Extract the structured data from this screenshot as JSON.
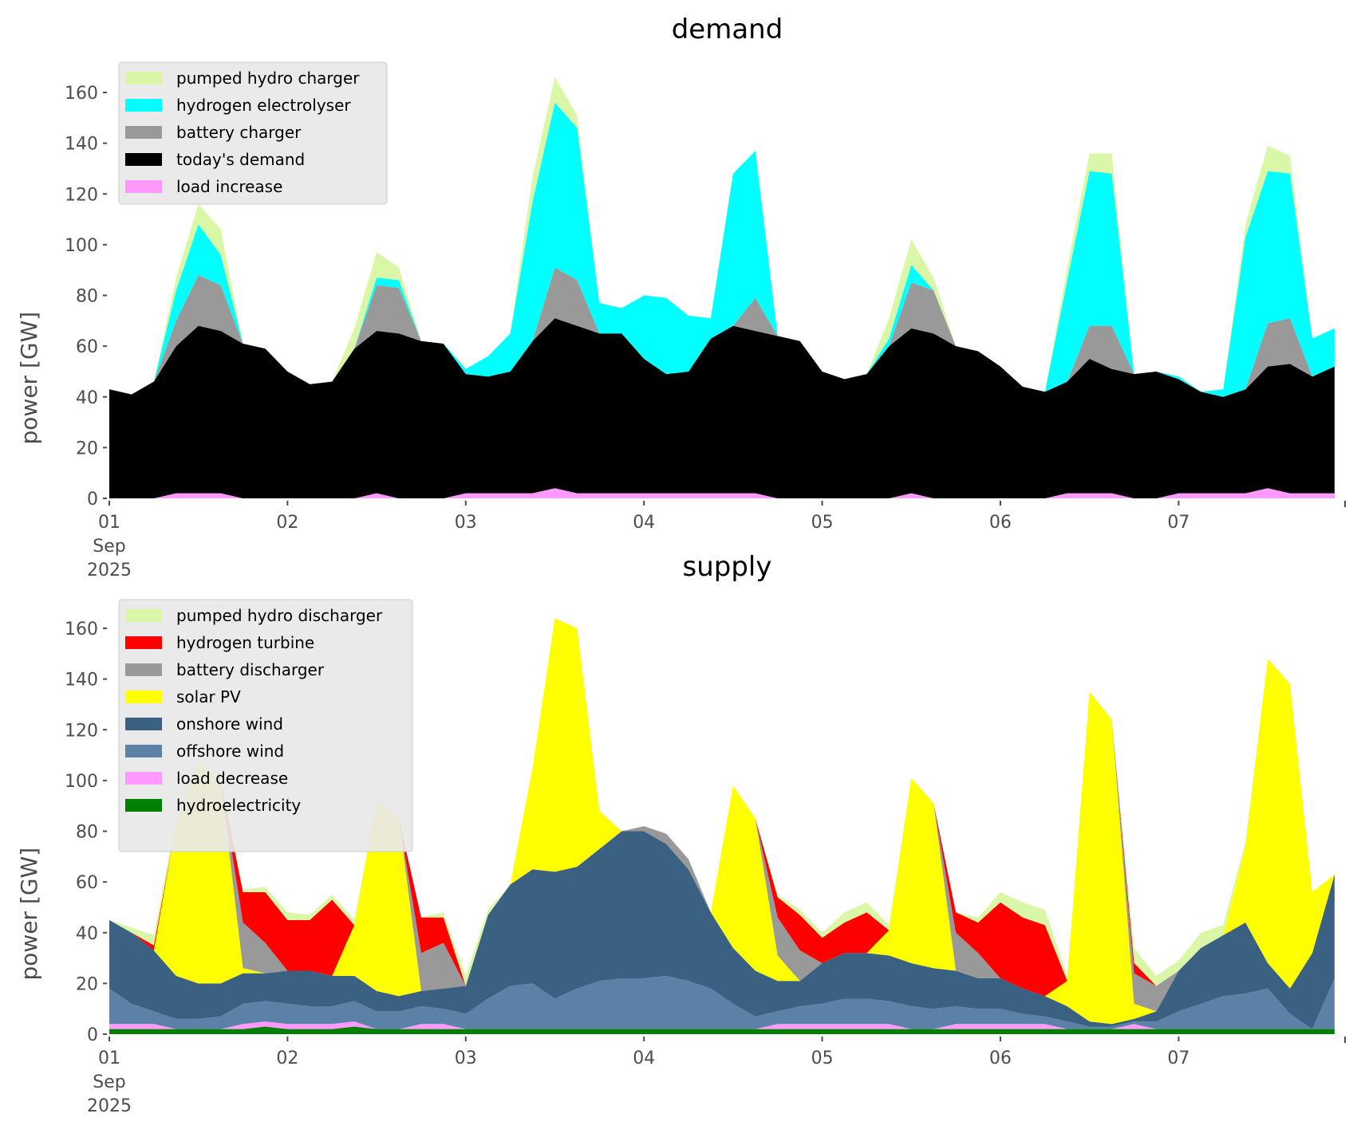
{
  "chart_data": [
    {
      "type": "area",
      "title": "demand",
      "xlabel": "",
      "ylabel": "power [GW]",
      "ylim": [
        0,
        172
      ],
      "yticks": [
        0,
        20,
        40,
        60,
        80,
        100,
        120,
        140,
        160
      ],
      "xticks": [
        "01\nSep\n2025",
        "02",
        "03",
        "04",
        "05",
        "06",
        "07"
      ],
      "xtick_days": [
        0,
        1,
        2,
        3,
        4,
        5,
        6
      ],
      "x_unit": "days since 2025-09-01 00:00",
      "x_step_days": 0.125,
      "x_range_days": [
        0,
        6.93
      ],
      "legend_position": "upper-left",
      "stack_order": "bottom-to-top",
      "series": [
        {
          "name": "load increase",
          "color": "#ff99ff",
          "overlay": true,
          "values": [
            0,
            0,
            0,
            2,
            2,
            2,
            0,
            0,
            0,
            0,
            0,
            0,
            2,
            0,
            0,
            0,
            2,
            2,
            2,
            2,
            4,
            2,
            2,
            2,
            2,
            2,
            2,
            2,
            2,
            2,
            0,
            0,
            0,
            0,
            0,
            0,
            2,
            0,
            0,
            0,
            0,
            0,
            0,
            2,
            2,
            2,
            0,
            0,
            2,
            2,
            2,
            2,
            4,
            2,
            2,
            2
          ]
        },
        {
          "name": "today's demand",
          "color": "#000000",
          "values": [
            43,
            41,
            46,
            60,
            68,
            66,
            61,
            59,
            50,
            45,
            46,
            59,
            66,
            65,
            62,
            61,
            49,
            48,
            50,
            62,
            71,
            68,
            65,
            65,
            55,
            49,
            50,
            63,
            68,
            66,
            64,
            62,
            50,
            47,
            49,
            60,
            67,
            65,
            60,
            58,
            52,
            44,
            42,
            46,
            55,
            51,
            49,
            50,
            47,
            42,
            40,
            43,
            52,
            53,
            48,
            52
          ]
        },
        {
          "name": "battery charger",
          "color": "#999999",
          "values": [
            0,
            0,
            0,
            10,
            20,
            18,
            0,
            0,
            0,
            0,
            0,
            0,
            18,
            18,
            0,
            0,
            0,
            0,
            0,
            0,
            20,
            18,
            0,
            0,
            0,
            0,
            0,
            0,
            0,
            13,
            0,
            0,
            0,
            0,
            0,
            0,
            18,
            17,
            0,
            0,
            0,
            0,
            0,
            0,
            13,
            17,
            0,
            0,
            0,
            0,
            0,
            0,
            17,
            18,
            0,
            0
          ]
        },
        {
          "name": "hydrogen electrolyser",
          "color": "#00ffff",
          "values": [
            0,
            0,
            0,
            12,
            20,
            12,
            0,
            0,
            0,
            0,
            0,
            0,
            3,
            3,
            0,
            0,
            2,
            8,
            15,
            55,
            65,
            60,
            12,
            10,
            25,
            30,
            22,
            8,
            60,
            58,
            0,
            0,
            0,
            0,
            0,
            3,
            7,
            0,
            0,
            0,
            0,
            0,
            0,
            40,
            61,
            60,
            0,
            0,
            1,
            0,
            3,
            60,
            60,
            57,
            15,
            15
          ]
        },
        {
          "name": "pumped hydro charger",
          "color": "#d9f7a6",
          "values": [
            0,
            0,
            0,
            5,
            8,
            10,
            0,
            0,
            0,
            0,
            0,
            8,
            10,
            5,
            0,
            0,
            0,
            0,
            0,
            10,
            10,
            5,
            0,
            0,
            0,
            0,
            0,
            0,
            0,
            0,
            0,
            0,
            0,
            0,
            0,
            8,
            10,
            5,
            0,
            0,
            0,
            0,
            0,
            5,
            7,
            8,
            0,
            0,
            0,
            0,
            0,
            5,
            10,
            7,
            0,
            0
          ]
        }
      ],
      "legend": [
        "pumped hydro charger",
        "hydrogen electrolyser",
        "battery charger",
        "today's demand",
        "load increase"
      ]
    },
    {
      "type": "area",
      "title": "supply",
      "xlabel": "",
      "ylabel": "power [GW]",
      "ylim": [
        0,
        172
      ],
      "yticks": [
        0,
        20,
        40,
        60,
        80,
        100,
        120,
        140,
        160
      ],
      "xticks": [
        "01\nSep\n2025",
        "02",
        "03",
        "04",
        "05",
        "06",
        "07"
      ],
      "xtick_days": [
        0,
        1,
        2,
        3,
        4,
        5,
        6
      ],
      "x_unit": "days since 2025-09-01 00:00",
      "x_step_days": 0.125,
      "x_range_days": [
        0,
        6.93
      ],
      "legend_position": "upper-left",
      "stack_order": "bottom-to-top",
      "series": [
        {
          "name": "hydroelectricity",
          "color": "#008000",
          "values": [
            2,
            2,
            2,
            2,
            2,
            2,
            2,
            3,
            2,
            2,
            2,
            3,
            2,
            2,
            2,
            2,
            2,
            2,
            2,
            2,
            2,
            2,
            2,
            2,
            2,
            2,
            2,
            2,
            2,
            2,
            2,
            2,
            2,
            2,
            2,
            2,
            2,
            2,
            2,
            2,
            2,
            2,
            2,
            2,
            2,
            2,
            2,
            2,
            2,
            2,
            2,
            2,
            2,
            2,
            2,
            2
          ]
        },
        {
          "name": "load decrease",
          "color": "#ff99ff",
          "values": [
            2,
            2,
            2,
            0,
            0,
            0,
            2,
            2,
            2,
            2,
            2,
            2,
            0,
            0,
            2,
            2,
            0,
            0,
            0,
            0,
            0,
            0,
            0,
            0,
            0,
            0,
            0,
            0,
            0,
            0,
            2,
            2,
            2,
            2,
            2,
            2,
            0,
            0,
            2,
            2,
            2,
            2,
            2,
            0,
            0,
            0,
            2,
            0,
            0,
            0,
            0,
            0,
            0,
            0,
            0,
            0
          ]
        },
        {
          "name": "offshore wind",
          "color": "#5b82a6",
          "values": [
            14,
            8,
            5,
            4,
            4,
            5,
            8,
            8,
            8,
            7,
            7,
            8,
            7,
            7,
            7,
            6,
            6,
            12,
            17,
            18,
            12,
            16,
            19,
            20,
            20,
            21,
            19,
            16,
            10,
            5,
            5,
            7,
            8,
            10,
            10,
            9,
            9,
            8,
            7,
            6,
            6,
            4,
            3,
            3,
            1,
            1,
            1,
            3,
            7,
            10,
            13,
            14,
            16,
            6,
            0,
            20
          ]
        },
        {
          "name": "onshore wind",
          "color": "#3b6182",
          "values": [
            27,
            28,
            24,
            17,
            14,
            13,
            12,
            11,
            13,
            14,
            12,
            10,
            8,
            6,
            6,
            8,
            11,
            33,
            40,
            45,
            50,
            48,
            52,
            58,
            58,
            52,
            44,
            30,
            22,
            18,
            12,
            10,
            16,
            18,
            18,
            18,
            17,
            16,
            14,
            12,
            12,
            10,
            8,
            6,
            2,
            1,
            1,
            4,
            16,
            22,
            24,
            28,
            10,
            10,
            30,
            41
          ]
        },
        {
          "name": "solar PV",
          "color": "#ffff00",
          "values": [
            0,
            0,
            0,
            60,
            88,
            80,
            2,
            0,
            0,
            0,
            0,
            20,
            75,
            70,
            0,
            0,
            0,
            0,
            0,
            40,
            100,
            94,
            15,
            0,
            0,
            0,
            0,
            0,
            64,
            60,
            10,
            0,
            0,
            0,
            0,
            10,
            73,
            65,
            0,
            0,
            0,
            0,
            0,
            10,
            130,
            120,
            6,
            0,
            0,
            0,
            0,
            30,
            120,
            120,
            24,
            0
          ]
        },
        {
          "name": "battery discharger",
          "color": "#999999",
          "values": [
            0,
            0,
            0,
            0,
            0,
            0,
            18,
            12,
            0,
            0,
            0,
            0,
            0,
            0,
            15,
            18,
            0,
            0,
            0,
            0,
            0,
            0,
            0,
            0,
            2,
            4,
            4,
            0,
            0,
            0,
            15,
            12,
            0,
            0,
            0,
            0,
            0,
            0,
            15,
            10,
            0,
            0,
            0,
            0,
            0,
            0,
            12,
            10,
            0,
            0,
            0,
            0,
            0,
            0,
            0,
            0
          ]
        },
        {
          "name": "hydrogen turbine",
          "color": "#ff0000",
          "values": [
            0,
            0,
            2,
            0,
            0,
            0,
            12,
            20,
            20,
            20,
            30,
            0,
            0,
            0,
            14,
            10,
            0,
            0,
            0,
            0,
            0,
            0,
            0,
            0,
            0,
            0,
            0,
            0,
            0,
            0,
            8,
            14,
            10,
            12,
            16,
            0,
            0,
            0,
            8,
            12,
            30,
            28,
            28,
            0,
            0,
            0,
            4,
            0,
            0,
            0,
            0,
            0,
            0,
            0,
            0,
            0
          ]
        },
        {
          "name": "pumped hydro discharger",
          "color": "#d9f7a6",
          "values": [
            0,
            2,
            4,
            2,
            0,
            0,
            1,
            2,
            3,
            2,
            2,
            2,
            0,
            0,
            0,
            2,
            4,
            2,
            0,
            0,
            0,
            0,
            0,
            0,
            0,
            0,
            0,
            0,
            0,
            0,
            1,
            2,
            2,
            4,
            4,
            2,
            0,
            0,
            0,
            2,
            4,
            6,
            6,
            2,
            0,
            0,
            6,
            4,
            4,
            6,
            4,
            2,
            0,
            0,
            0,
            0
          ]
        }
      ],
      "legend": [
        "pumped hydro discharger",
        "hydrogen turbine",
        "battery discharger",
        "solar PV",
        "onshore wind",
        "offshore wind",
        "load decrease",
        "hydroelectricity"
      ]
    }
  ]
}
